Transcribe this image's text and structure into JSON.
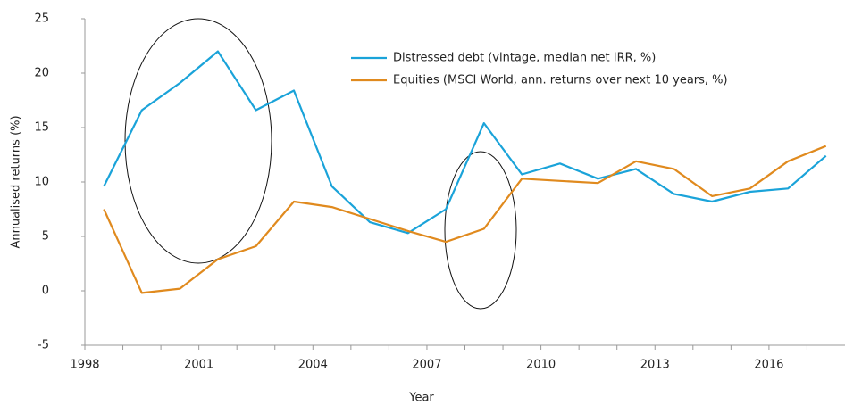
{
  "chart_data": {
    "type": "line",
    "x_label": "Year",
    "y_label": "Annualised returns (%)",
    "categories": [
      "1998",
      null,
      null,
      "2001",
      null,
      null,
      "2004",
      null,
      null,
      "2007",
      null,
      null,
      "2010",
      null,
      null,
      "2013",
      null,
      null,
      "2016",
      null
    ],
    "series": [
      {
        "name": "Distressed debt (vintage, median net IRR, %)",
        "color": "#1aa3d9",
        "values": [
          9.6,
          16.6,
          19.1,
          22.0,
          16.6,
          18.4,
          9.6,
          6.3,
          5.3,
          7.5,
          15.4,
          10.7,
          11.7,
          10.3,
          11.2,
          8.9,
          8.2,
          9.1,
          9.4,
          12.4
        ]
      },
      {
        "name": "Equities (MSCI World, ann. returns over next 10 years, %)",
        "color": "#e08a1e",
        "values": [
          7.5,
          -0.2,
          0.2,
          2.9,
          4.1,
          8.2,
          7.7,
          6.6,
          5.5,
          4.5,
          5.7,
          10.3,
          10.1,
          9.9,
          11.9,
          11.2,
          8.7,
          9.4,
          11.9,
          13.3
        ]
      }
    ],
    "ylim": [
      -5,
      25
    ],
    "yticks": [
      -5,
      0,
      5,
      10,
      15,
      20,
      25
    ],
    "grid": false
  }
}
